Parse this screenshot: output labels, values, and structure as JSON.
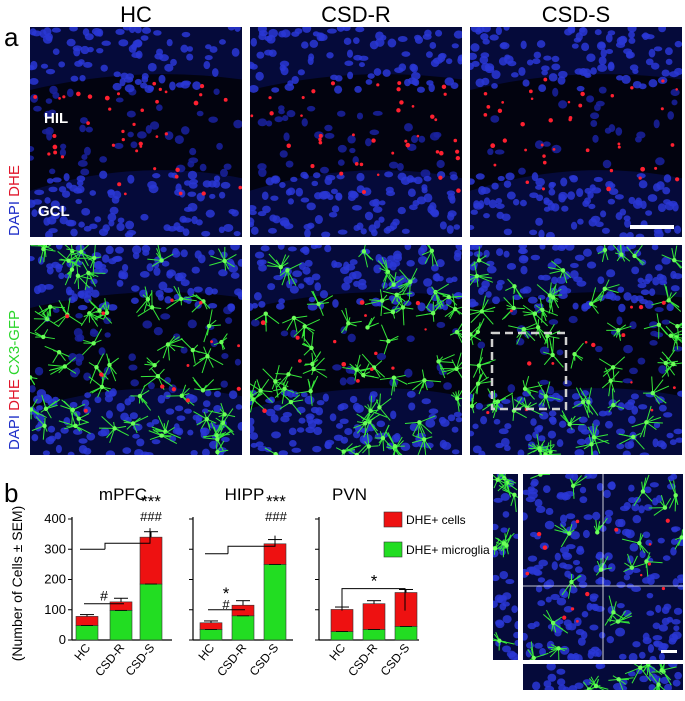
{
  "figure": {
    "panel_a_label": "a",
    "panel_b_label": "b",
    "columns": [
      "HC",
      "CSD-R",
      "CSD-S"
    ],
    "row1_side_label": {
      "dapi": "DAPI",
      "dhe": "DHE"
    },
    "row2_side_label": {
      "dapi": "DAPI",
      "dhe": "DHE",
      "gfp": "CX3-GFP"
    },
    "region_labels": {
      "hil": "HIL",
      "gcl": "GCL"
    },
    "colors": {
      "dapi": "#1f2fc8",
      "dhe": "#e0162b",
      "gfp": "#2cd62c",
      "bar_red": "#ee1111",
      "bar_green": "#22dd22"
    }
  },
  "chart_data": [
    {
      "type": "bar",
      "stacked": true,
      "title": "mPFC",
      "ylabel": "(Number of Cells ± SEM)",
      "ylim": [
        0,
        400
      ],
      "yticks": [
        0,
        100,
        200,
        300,
        400
      ],
      "categories": [
        "HC",
        "CSD-R",
        "CSD-S"
      ],
      "series": [
        {
          "name": "DHE+ microglia",
          "values": [
            48,
            98,
            185
          ]
        },
        {
          "name": "DHE+ cells",
          "values": [
            30,
            28,
            155
          ]
        }
      ],
      "error": [
        6,
        12,
        18
      ],
      "annotations": {
        "hash_low": "#",
        "star_top": "***",
        "hash_top": "###"
      }
    },
    {
      "type": "bar",
      "stacked": true,
      "title": "HIPP",
      "categories": [
        "HC",
        "CSD-R",
        "CSD-S"
      ],
      "series": [
        {
          "name": "DHE+ microglia",
          "values": [
            35,
            80,
            250
          ]
        },
        {
          "name": "DHE+ cells",
          "values": [
            22,
            35,
            68
          ]
        }
      ],
      "error": [
        6,
        15,
        14
      ],
      "annotations": {
        "star_low": "*",
        "hash_low": "#",
        "star_top": "***",
        "hash_top": "###"
      }
    },
    {
      "type": "bar",
      "stacked": true,
      "title": "PVN",
      "categories": [
        "HC",
        "CSD-R",
        "CSD-S"
      ],
      "series": [
        {
          "name": "DHE+ microglia",
          "values": [
            28,
            35,
            45
          ]
        },
        {
          "name": "DHE+ cells",
          "values": [
            73,
            85,
            112
          ]
        }
      ],
      "error": [
        8,
        10,
        10
      ],
      "annotations": {
        "star": "*"
      }
    }
  ],
  "legend": {
    "cells": "DHE+ cells",
    "microglia": "DHE+ microglia"
  }
}
